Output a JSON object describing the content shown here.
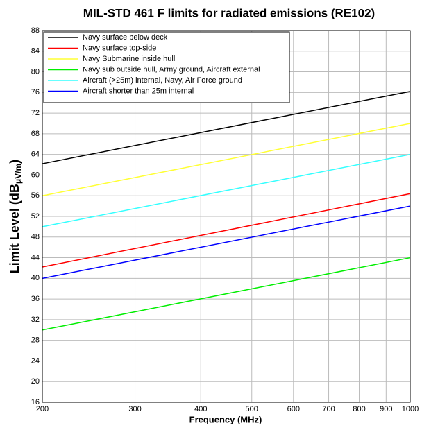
{
  "chart_data": {
    "type": "line",
    "title": "MIL-STD 461 F  limits for radiated emissions (RE102)",
    "xlabel": "Frequency (MHz)",
    "ylabel": [
      "Limit Level (dB",
      "μV/m",
      ")"
    ],
    "xscale": "log",
    "grid": true,
    "legend": "upper left",
    "x": [
      200,
      1000
    ],
    "xlim": [
      200,
      1000
    ],
    "xticks": [
      200,
      300,
      400,
      500,
      600,
      700,
      800,
      900,
      1000
    ],
    "ylim": [
      16,
      88
    ],
    "yticks": [
      16,
      20,
      24,
      28,
      32,
      36,
      40,
      44,
      48,
      52,
      56,
      60,
      64,
      68,
      72,
      76,
      80,
      84,
      88
    ],
    "series": [
      {
        "name": "Navy surface below deck",
        "color": "#000000",
        "values": [
          62.2,
          76.2
        ]
      },
      {
        "name": "Navy surface top-side",
        "color": "#ff0000",
        "values": [
          42.2,
          56.4
        ]
      },
      {
        "name": "Navy Submarine inside hull",
        "color": "#ffff33",
        "values": [
          56,
          70
        ]
      },
      {
        "name": "Navy sub outside hull, Army ground, Aircraft external",
        "color": "#00ee00",
        "values": [
          30,
          44
        ]
      },
      {
        "name": "Aircraft (>25m) internal, Navy, Air Force ground",
        "color": "#33ffff",
        "values": [
          50,
          64
        ]
      },
      {
        "name": "Aircraft shorter than 25m internal",
        "color": "#0000ff",
        "values": [
          40,
          54
        ]
      }
    ]
  }
}
